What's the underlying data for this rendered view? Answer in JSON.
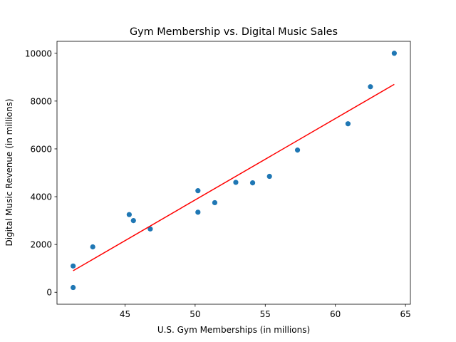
{
  "chart_data": {
    "type": "scatter",
    "title": "Gym Membership vs. Digital Music Sales",
    "xlabel": "U.S. Gym Memberships (in millions)",
    "ylabel": "Digital Music Revenue (in millions)",
    "xlim": [
      40.15,
      65.35
    ],
    "ylim": [
      -500,
      10500
    ],
    "xticks": [
      45,
      50,
      55,
      60,
      65
    ],
    "yticks": [
      0,
      2000,
      4000,
      6000,
      8000,
      10000
    ],
    "grid": false,
    "legend": "none",
    "colors": {
      "points": "#1f77b4",
      "fit_line": "#ff0000"
    },
    "points": [
      {
        "x": 41.3,
        "y": 1100
      },
      {
        "x": 41.3,
        "y": 200
      },
      {
        "x": 42.7,
        "y": 1900
      },
      {
        "x": 45.3,
        "y": 3250
      },
      {
        "x": 45.6,
        "y": 3000
      },
      {
        "x": 46.8,
        "y": 2650
      },
      {
        "x": 50.2,
        "y": 4250
      },
      {
        "x": 50.2,
        "y": 3350
      },
      {
        "x": 51.4,
        "y": 3750
      },
      {
        "x": 52.9,
        "y": 4600
      },
      {
        "x": 54.1,
        "y": 4580
      },
      {
        "x": 55.3,
        "y": 4850
      },
      {
        "x": 57.3,
        "y": 5950
      },
      {
        "x": 60.9,
        "y": 7050
      },
      {
        "x": 62.5,
        "y": 8600
      },
      {
        "x": 64.2,
        "y": 10000
      }
    ],
    "fit_line": {
      "x": [
        41.3,
        64.2
      ],
      "y": [
        900,
        8700
      ]
    }
  }
}
